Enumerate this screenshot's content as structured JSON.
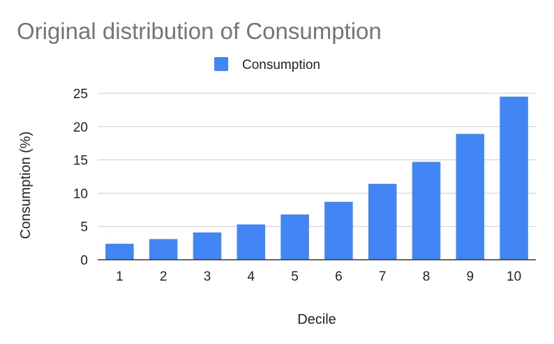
{
  "chart_data": {
    "type": "bar",
    "title": "Original distribution of Consumption",
    "xlabel": "Decile",
    "ylabel": "Consumption (%)",
    "categories": [
      "1",
      "2",
      "3",
      "4",
      "5",
      "6",
      "7",
      "8",
      "9",
      "10"
    ],
    "series": [
      {
        "name": "Consumption",
        "color": "#4285F4",
        "values": [
          2.4,
          3.1,
          4.1,
          5.3,
          6.8,
          8.7,
          11.4,
          14.7,
          18.9,
          24.5
        ]
      }
    ],
    "ylim": [
      0,
      25
    ],
    "yticks": [
      "0",
      "5",
      "10",
      "15",
      "20",
      "25"
    ],
    "grid": true,
    "legend": "top-center"
  }
}
